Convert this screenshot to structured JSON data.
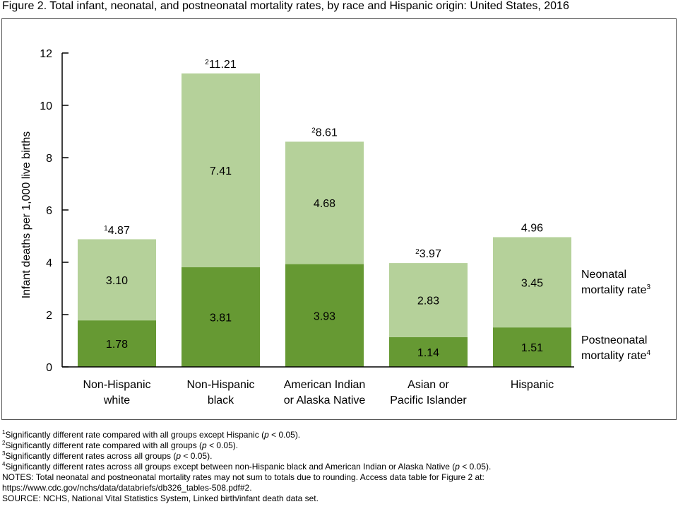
{
  "figure_title": "Figure 2. Total infant, neonatal, and postneonatal mortality rates, by race and Hispanic origin: United States, 2016",
  "chart_data": {
    "type": "bar",
    "stacked": true,
    "ylabel": "Infant deaths per 1,000 live births",
    "ylim": [
      0,
      12
    ],
    "yticks": [
      0,
      2,
      4,
      6,
      8,
      10,
      12
    ],
    "grid": false,
    "legend": "right",
    "categories": [
      [
        "Non-Hispanic",
        "white"
      ],
      [
        "Non-Hispanic",
        "black"
      ],
      [
        "American Indian",
        "or Alaska Native"
      ],
      [
        "Asian or",
        "Pacific Islander"
      ],
      [
        "Hispanic"
      ]
    ],
    "series": [
      {
        "name": "Postneonatal mortality rate",
        "footnote": "4",
        "color": "#669933",
        "values": [
          1.78,
          3.81,
          3.93,
          1.14,
          1.51
        ],
        "labels": [
          "1.78",
          "3.81",
          "3.93",
          "1.14",
          "1.51"
        ]
      },
      {
        "name": "Neonatal mortality rate",
        "footnote": "3",
        "color": "#b5d19a",
        "values": [
          3.1,
          7.41,
          4.68,
          2.83,
          3.45
        ],
        "labels": [
          "3.10",
          "7.41",
          "4.68",
          "2.83",
          "3.45"
        ]
      }
    ],
    "totals": [
      {
        "value": 4.87,
        "label": "4.87",
        "footnote": "1"
      },
      {
        "value": 11.21,
        "label": "11.21",
        "footnote": "2"
      },
      {
        "value": 8.61,
        "label": "8.61",
        "footnote": "2"
      },
      {
        "value": 3.97,
        "label": "3.97",
        "footnote": "2"
      },
      {
        "value": 4.96,
        "label": "4.96",
        "footnote": ""
      }
    ],
    "legend_labels": {
      "neonatal": [
        "Neonatal",
        "mortality rate"
      ],
      "postneonatal": [
        "Postneonatal",
        "mortality rate"
      ]
    }
  },
  "footnotes": {
    "note1": {
      "sup": "1",
      "before": "Significantly different rate compared with all groups except Hispanic (",
      "italic": "p",
      "after": " < 0.05)."
    },
    "note2": {
      "sup": "2",
      "before": "Significantly different rate compared with all groups (",
      "italic": "p",
      "after": " < 0.05)."
    },
    "note3": {
      "sup": "3",
      "before": "Significantly different rates across all groups (",
      "italic": "p",
      "after": " < 0.05)."
    },
    "note4": {
      "sup": "4",
      "before": "Significantly different rates across all groups except between non-Hispanic black and American Indian or Alaska Native (",
      "italic": "p",
      "after": " < 0.05)."
    },
    "notes_line1": "NOTES: Total neonatal and postneonatal mortality rates may not sum to totals due to rounding. Access data table for Figure 2 at:",
    "notes_line2": "https://www.cdc.gov/nchs/data/databriefs/db326_tables-508.pdf#2.",
    "source": "SOURCE: NCHS, National Vital Statistics System, Linked birth/infant death data set."
  }
}
